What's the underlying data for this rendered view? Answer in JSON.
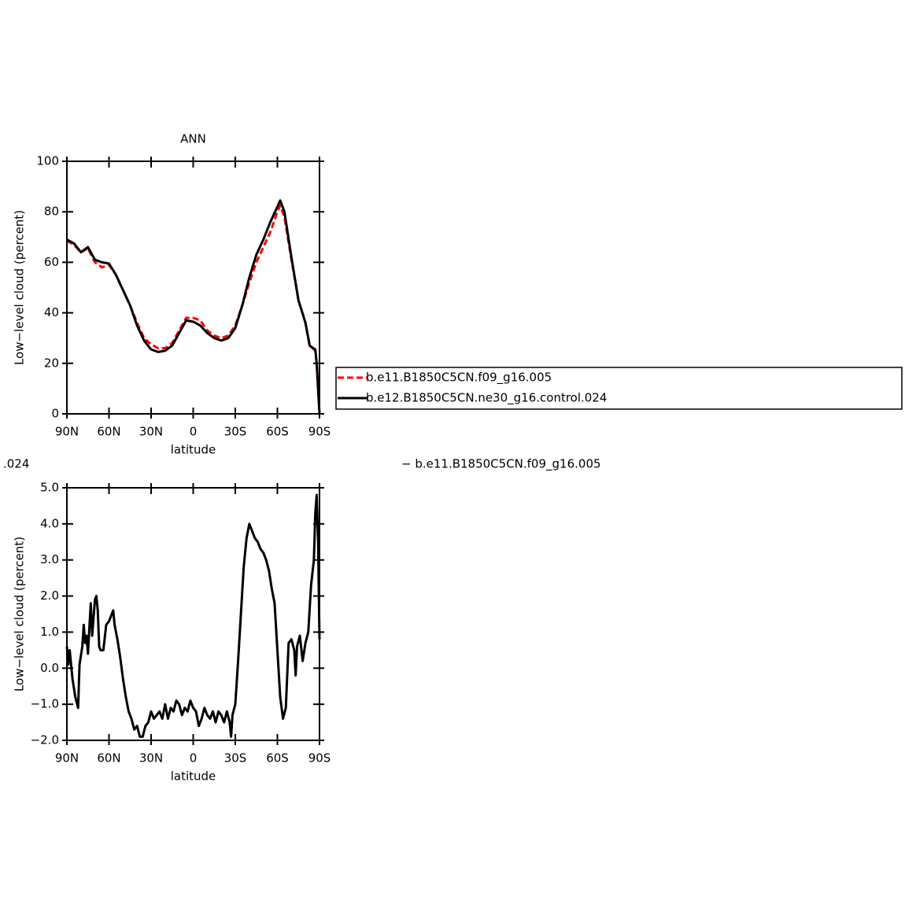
{
  "chart_data": [
    {
      "type": "line",
      "title": "ANN",
      "xlabel": "latitude",
      "ylabel": "Low−level cloud (percent)",
      "xlim": [
        90,
        -90
      ],
      "ylim": [
        0,
        100
      ],
      "xticks": [
        {
          "value": 90,
          "label": "90N"
        },
        {
          "value": 60,
          "label": "60N"
        },
        {
          "value": 30,
          "label": "30N"
        },
        0,
        {
          "value": -30,
          "label": "30S"
        },
        {
          "value": -60,
          "label": "60S"
        },
        {
          "value": -90,
          "label": "90S"
        }
      ],
      "yticks": [
        0,
        20,
        40,
        60,
        80,
        100
      ],
      "legend": "right",
      "series": [
        {
          "name": "b.e11.B1850C5CN.f09_g16.005",
          "color": "#ff0000",
          "dashed": true,
          "x": [
            90,
            85,
            80,
            75,
            70,
            65,
            60,
            55,
            50,
            45,
            40,
            35,
            30,
            25,
            20,
            15,
            10,
            5,
            0,
            -5,
            -10,
            -15,
            -20,
            -25,
            -30,
            -35,
            -40,
            -45,
            -50,
            -55,
            -60,
            -62,
            -65,
            -70,
            -75,
            -80,
            -83,
            -87,
            -88,
            -90
          ],
          "values": [
            68.5,
            67,
            64,
            65.5,
            60,
            58,
            59,
            55,
            49,
            43,
            36,
            30,
            27.5,
            26,
            26,
            28,
            33,
            38,
            38,
            37,
            33,
            31,
            30,
            31,
            35,
            43,
            52,
            60,
            66,
            72,
            80,
            82.5,
            78,
            61,
            45,
            36,
            27,
            25,
            20,
            0
          ]
        },
        {
          "name": "b.e12.B1850C5CN.ne30_g16.control.024",
          "color": "#000000",
          "dashed": false,
          "x": [
            90,
            85,
            80,
            75,
            70,
            65,
            60,
            55,
            50,
            45,
            40,
            35,
            30,
            25,
            20,
            15,
            10,
            5,
            0,
            -5,
            -10,
            -15,
            -20,
            -25,
            -30,
            -35,
            -40,
            -45,
            -50,
            -55,
            -60,
            -62,
            -65,
            -70,
            -75,
            -80,
            -83,
            -87,
            -88,
            -90
          ],
          "values": [
            69,
            67.5,
            64,
            66,
            61,
            60,
            59.5,
            55,
            49,
            43,
            35,
            29,
            25.5,
            24.5,
            25,
            27,
            32,
            37,
            36.5,
            35,
            32,
            30,
            29,
            30,
            34,
            43,
            54,
            63,
            69,
            76,
            82,
            84.5,
            80,
            62,
            45,
            36,
            27,
            25.5,
            20,
            0
          ]
        }
      ]
    },
    {
      "type": "line",
      "annotations": [
        ".024",
        "− b.e11.B1850C5CN.f09_g16.005"
      ],
      "xlabel": "latitude",
      "ylabel": "Low−level cloud (percent)",
      "xlim": [
        90,
        -90
      ],
      "ylim": [
        -2,
        5
      ],
      "xticks": [
        {
          "value": 90,
          "label": "90N"
        },
        {
          "value": 60,
          "label": "60N"
        },
        {
          "value": 30,
          "label": "30N"
        },
        0,
        {
          "value": -30,
          "label": "30S"
        },
        {
          "value": -60,
          "label": "60S"
        },
        {
          "value": -90,
          "label": "90S"
        }
      ],
      "yticks": [
        {
          "value": 5,
          "label": "5.0"
        },
        {
          "value": 4,
          "label": "4.0"
        },
        {
          "value": 3,
          "label": "3.0"
        },
        {
          "value": 2,
          "label": "2.0"
        },
        {
          "value": 1,
          "label": "1.0"
        },
        {
          "value": 0,
          "label": "0.0"
        },
        {
          "value": -1,
          "label": "−1.0"
        },
        {
          "value": -2,
          "label": "−2.0"
        }
      ],
      "series": [
        {
          "color": "#000000",
          "dashed": false,
          "x": [
            90,
            89,
            88,
            86,
            84,
            82,
            81,
            79,
            78,
            77,
            76,
            75,
            73,
            72,
            70,
            69,
            68,
            67,
            66,
            64,
            62,
            60,
            58,
            57,
            56,
            54,
            52,
            50,
            48,
            46,
            44,
            42,
            40,
            38,
            36,
            34,
            32,
            30,
            28,
            26,
            24,
            22,
            20,
            18,
            16,
            14,
            12,
            10,
            8,
            6,
            4,
            2,
            0,
            -2,
            -4,
            -6,
            -8,
            -10,
            -12,
            -14,
            -16,
            -18,
            -20,
            -22,
            -24,
            -26,
            -27,
            -28,
            -30,
            -32,
            -34,
            -36,
            -38,
            -40,
            -42,
            -44,
            -46,
            -48,
            -50,
            -52,
            -54,
            -56,
            -58,
            -60,
            -62,
            -64,
            -66,
            -68,
            -70,
            -72,
            -73,
            -74,
            -76,
            -78,
            -80,
            -82,
            -84,
            -86,
            -87,
            -88,
            -89,
            -90
          ],
          "values": [
            0.6,
            0.1,
            0.5,
            -0.3,
            -0.8,
            -1.1,
            0.1,
            0.6,
            1.2,
            0.7,
            0.9,
            0.4,
            1.8,
            0.9,
            1.9,
            2.0,
            1.6,
            0.6,
            0.5,
            0.5,
            1.2,
            1.3,
            1.5,
            1.6,
            1.2,
            0.8,
            0.3,
            -0.3,
            -0.8,
            -1.2,
            -1.4,
            -1.7,
            -1.6,
            -1.9,
            -1.9,
            -1.6,
            -1.5,
            -1.2,
            -1.4,
            -1.3,
            -1.2,
            -1.4,
            -1.0,
            -1.4,
            -1.1,
            -1.2,
            -0.9,
            -1.0,
            -1.3,
            -1.1,
            -1.2,
            -0.9,
            -1.1,
            -1.2,
            -1.6,
            -1.4,
            -1.1,
            -1.3,
            -1.4,
            -1.2,
            -1.5,
            -1.2,
            -1.3,
            -1.5,
            -1.2,
            -1.5,
            -1.9,
            -1.3,
            -1.0,
            0.2,
            1.5,
            2.8,
            3.6,
            4.0,
            3.8,
            3.6,
            3.5,
            3.3,
            3.2,
            3.0,
            2.7,
            2.2,
            1.8,
            0.5,
            -0.8,
            -1.4,
            -1.1,
            0.7,
            0.8,
            0.5,
            -0.2,
            0.6,
            0.9,
            0.2,
            0.7,
            1.0,
            2.3,
            3.0,
            4.3,
            4.8,
            3.5,
            0.8
          ]
        }
      ]
    }
  ]
}
